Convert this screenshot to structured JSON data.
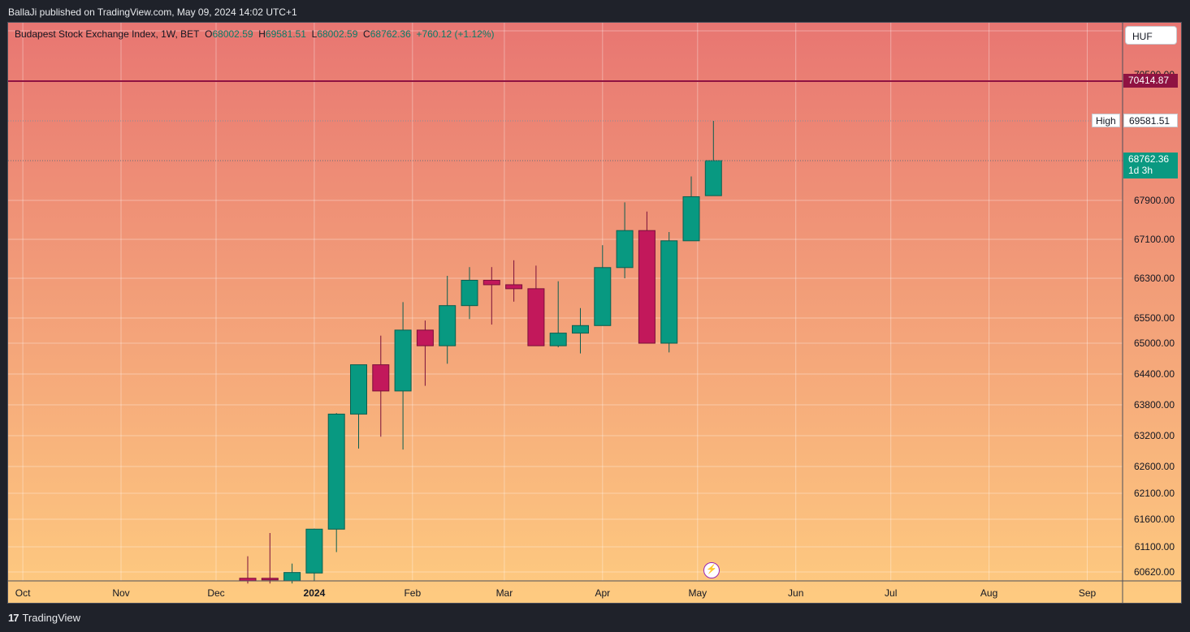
{
  "header": {
    "published": "BallaJi published on TradingView.com, May 09, 2024 14:02 UTC+1"
  },
  "legend": {
    "symbol": "Budapest Stock Exchange Index, 1W, BET",
    "o_label": "O",
    "o_value": "68002.59",
    "h_label": "H",
    "h_value": "69581.51",
    "l_label": "L",
    "l_value": "68002.59",
    "c_label": "C",
    "c_value": "68762.36",
    "change": "+760.12 (+1.12%)"
  },
  "currency": "HUF",
  "labels": {
    "hline_value": "70414.87",
    "high_text": "High",
    "high_value": "69581.51",
    "last_value": "68762.36",
    "countdown": "1d 3h",
    "hidden_tick": "70500.00"
  },
  "footer": {
    "brand": "TradingView"
  },
  "colors": {
    "up": "#089981",
    "down": "#c2185b",
    "hline": "#8f1242",
    "bg_top": "#e87672",
    "bg_bottom": "#fecb80"
  },
  "chart_data": {
    "type": "candlestick",
    "title": "Budapest Stock Exchange Index, 1W, BET",
    "x_ticks": [
      "Oct",
      "Nov",
      "Dec",
      "2024",
      "Feb",
      "Mar",
      "Apr",
      "May",
      "Jun",
      "Jul",
      "Aug",
      "Sep"
    ],
    "y_ticks": [
      60620,
      61100,
      61600,
      62100,
      62600,
      63200,
      63800,
      64400,
      65000,
      65500,
      66300,
      67100,
      67900
    ],
    "y_tick_labels": [
      "60620.00",
      "61100.00",
      "61600.00",
      "62100.00",
      "62600.00",
      "63200.00",
      "63800.00",
      "64400.00",
      "65000.00",
      "65500.00",
      "66300.00",
      "67100.00",
      "67900.00"
    ],
    "hline": 70414.87,
    "high_marker": 69581.51,
    "last_price": 68762.36,
    "candles": [
      {
        "week": "2023-12-11",
        "o": 60500,
        "h": 60920,
        "l": 60400,
        "c": 60450
      },
      {
        "week": "2023-12-18",
        "o": 60500,
        "h": 61350,
        "l": 60400,
        "c": 60480
      },
      {
        "week": "2023-12-25",
        "o": 60450,
        "h": 60780,
        "l": 60400,
        "c": 60610
      },
      {
        "week": "2024-01-01",
        "o": 60600,
        "h": 61430,
        "l": 60450,
        "c": 61420
      },
      {
        "week": "2024-01-08",
        "o": 61420,
        "h": 63640,
        "l": 61000,
        "c": 63620
      },
      {
        "week": "2024-01-15",
        "o": 63620,
        "h": 64580,
        "l": 62950,
        "c": 64580
      },
      {
        "week": "2024-01-22",
        "o": 64580,
        "h": 65150,
        "l": 63180,
        "c": 64070
      },
      {
        "week": "2024-01-29",
        "o": 64070,
        "h": 65820,
        "l": 62930,
        "c": 65260
      },
      {
        "week": "2024-02-05",
        "o": 65260,
        "h": 65450,
        "l": 64170,
        "c": 64950
      },
      {
        "week": "2024-02-12",
        "o": 64950,
        "h": 66350,
        "l": 64600,
        "c": 65750
      },
      {
        "week": "2024-02-19",
        "o": 65750,
        "h": 66530,
        "l": 65480,
        "c": 66260
      },
      {
        "week": "2024-02-26",
        "o": 66260,
        "h": 66530,
        "l": 65370,
        "c": 66170
      },
      {
        "week": "2024-03-04",
        "o": 66170,
        "h": 66670,
        "l": 65830,
        "c": 66090
      },
      {
        "week": "2024-03-11",
        "o": 66090,
        "h": 66560,
        "l": 64950,
        "c": 64950
      },
      {
        "week": "2024-03-18",
        "o": 64950,
        "h": 66240,
        "l": 64920,
        "c": 65200
      },
      {
        "week": "2024-03-25",
        "o": 65200,
        "h": 65700,
        "l": 64800,
        "c": 65350
      },
      {
        "week": "2024-04-01",
        "o": 65350,
        "h": 66980,
        "l": 65350,
        "c": 66520
      },
      {
        "week": "2024-04-08",
        "o": 66520,
        "h": 67860,
        "l": 66300,
        "c": 67280
      },
      {
        "week": "2024-04-15",
        "o": 67280,
        "h": 67670,
        "l": 65000,
        "c": 65000
      },
      {
        "week": "2024-04-22",
        "o": 65000,
        "h": 67250,
        "l": 64820,
        "c": 67070
      },
      {
        "week": "2024-04-29",
        "o": 67070,
        "h": 68420,
        "l": 67070,
        "c": 67980
      },
      {
        "week": "2024-05-06",
        "o": 68002.59,
        "h": 69581.51,
        "l": 68002.59,
        "c": 68762.36
      }
    ]
  }
}
